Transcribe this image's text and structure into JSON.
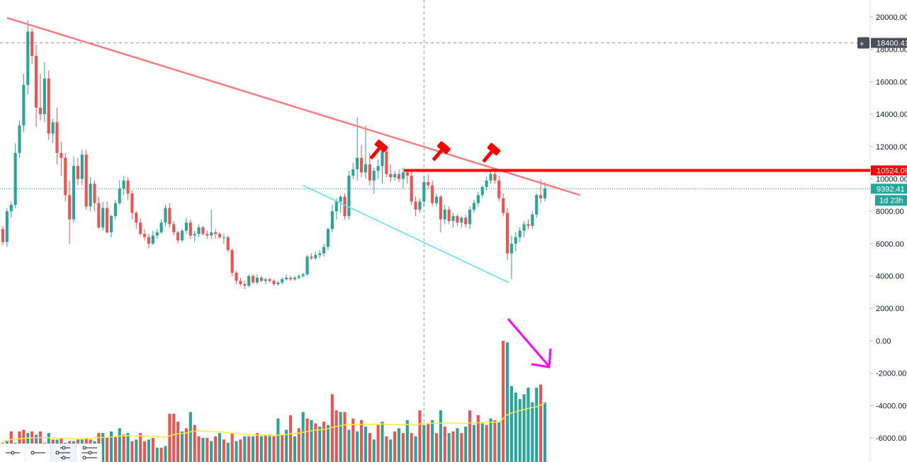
{
  "chart_data": {
    "type": "candlestick",
    "title": "",
    "ylim": [
      -7000,
      20500
    ],
    "y_ticks": [
      20000,
      18000,
      16000,
      14000,
      12000,
      10000,
      8000,
      6000,
      4000,
      2000,
      0,
      -2000,
      -4000,
      -6000
    ],
    "y_tick_labels": [
      "20000.00",
      "18000.00",
      "16000.00",
      "14000.00",
      "12000.00",
      "10000.00",
      "8000.00",
      "6000.00",
      "4000.00",
      "2000.00",
      "0.00",
      "-2000.00",
      "-4000.00",
      "-6000.00"
    ],
    "grid": false,
    "crosshair": {
      "price": 18400.41,
      "label": "18400.41"
    },
    "horizontal_level": {
      "price": 10524.09,
      "label": "10524.09",
      "color": "#ff0000"
    },
    "last_price": {
      "price": 9392.41,
      "label": "9392.41",
      "countdown": "1d 23h",
      "color": "#26a69a"
    },
    "up_color": "#26a69a",
    "down_color": "#ef5350",
    "volume_ma_color": "#ffeb3b",
    "candles_ohlc": [
      [
        6900,
        7100,
        5900,
        6100
      ],
      [
        6100,
        8200,
        5800,
        8000
      ],
      [
        8000,
        8600,
        7600,
        8400
      ],
      [
        8400,
        12200,
        8200,
        11600
      ],
      [
        11600,
        13600,
        11300,
        13300
      ],
      [
        13300,
        16500,
        12900,
        15800
      ],
      [
        15800,
        19800,
        15200,
        19100
      ],
      [
        19100,
        19300,
        17100,
        17600
      ],
      [
        17600,
        18300,
        13200,
        14400
      ],
      [
        14400,
        16500,
        13600,
        14000
      ],
      [
        14000,
        17200,
        13500,
        16200
      ],
      [
        16200,
        16700,
        12400,
        12800
      ],
      [
        12800,
        13700,
        12200,
        13500
      ],
      [
        13500,
        14400,
        10900,
        11600
      ],
      [
        11600,
        12300,
        10200,
        11300
      ],
      [
        11300,
        11600,
        8600,
        9000
      ],
      [
        9000,
        9900,
        6000,
        7500
      ],
      [
        7500,
        11400,
        7300,
        10800
      ],
      [
        10800,
        11300,
        9600,
        10000
      ],
      [
        10000,
        11800,
        9600,
        11500
      ],
      [
        11500,
        11800,
        8100,
        8300
      ],
      [
        8300,
        10100,
        8000,
        9700
      ],
      [
        9700,
        9900,
        8000,
        8500
      ],
      [
        8500,
        8900,
        6900,
        7000
      ],
      [
        7000,
        8600,
        6800,
        8200
      ],
      [
        8200,
        8600,
        6600,
        6700
      ],
      [
        6700,
        7800,
        6400,
        7700
      ],
      [
        7700,
        8700,
        7500,
        8500
      ],
      [
        8500,
        9900,
        8400,
        9400
      ],
      [
        9400,
        10200,
        9000,
        9900
      ],
      [
        9900,
        10100,
        8700,
        9100
      ],
      [
        9100,
        9300,
        7500,
        7900
      ],
      [
        7900,
        8000,
        6900,
        7300
      ],
      [
        7300,
        7600,
        6500,
        6600
      ],
      [
        6600,
        6900,
        6200,
        6400
      ],
      [
        6400,
        6600,
        5700,
        6000
      ],
      [
        6000,
        6800,
        5900,
        6500
      ],
      [
        6500,
        6900,
        6300,
        6700
      ],
      [
        6700,
        7500,
        6600,
        7300
      ],
      [
        7300,
        8400,
        7100,
        8200
      ],
      [
        8200,
        8500,
        7000,
        7200
      ],
      [
        7200,
        7400,
        6500,
        6700
      ],
      [
        6700,
        6800,
        6000,
        6200
      ],
      [
        6200,
        6900,
        6100,
        6800
      ],
      [
        6800,
        7600,
        6600,
        7300
      ],
      [
        7300,
        7500,
        6300,
        6500
      ],
      [
        6500,
        6800,
        6100,
        6600
      ],
      [
        6600,
        7200,
        6400,
        7000
      ],
      [
        7000,
        7100,
        6500,
        6600
      ],
      [
        6600,
        6800,
        6300,
        6500
      ],
      [
        6500,
        8100,
        6300,
        6700
      ],
      [
        6700,
        6900,
        6300,
        6600
      ],
      [
        6600,
        6700,
        6300,
        6400
      ],
      [
        6400,
        6600,
        6000,
        6400
      ],
      [
        6400,
        6500,
        5500,
        5600
      ],
      [
        5600,
        5700,
        4000,
        4200
      ],
      [
        4200,
        4300,
        3500,
        3700
      ],
      [
        3700,
        3900,
        3400,
        3500
      ],
      [
        3500,
        3700,
        3200,
        3400
      ],
      [
        3400,
        4100,
        3300,
        4000
      ],
      [
        4000,
        4100,
        3500,
        3600
      ],
      [
        3600,
        4100,
        3500,
        3900
      ],
      [
        3900,
        4000,
        3600,
        3700
      ],
      [
        3700,
        3900,
        3500,
        3800
      ],
      [
        3800,
        3900,
        3600,
        3700
      ],
      [
        3700,
        3800,
        3400,
        3500
      ],
      [
        3500,
        3700,
        3400,
        3600
      ],
      [
        3600,
        3900,
        3500,
        3800
      ],
      [
        3800,
        4100,
        3700,
        3900
      ],
      [
        3900,
        4000,
        3700,
        3800
      ],
      [
        3800,
        4000,
        3700,
        3900
      ],
      [
        3900,
        4100,
        3800,
        4000
      ],
      [
        4000,
        4200,
        3900,
        4100
      ],
      [
        4100,
        5300,
        4000,
        5200
      ],
      [
        5200,
        5400,
        5000,
        5100
      ],
      [
        5100,
        5500,
        5000,
        5300
      ],
      [
        5300,
        5600,
        5100,
        5400
      ],
      [
        5400,
        6000,
        5200,
        5800
      ],
      [
        5800,
        7000,
        5600,
        6900
      ],
      [
        6900,
        8400,
        6700,
        8000
      ],
      [
        8000,
        8800,
        7500,
        8600
      ],
      [
        8600,
        9000,
        7900,
        8900
      ],
      [
        8900,
        9100,
        7500,
        7700
      ],
      [
        7700,
        10500,
        7500,
        10200
      ],
      [
        10200,
        11000,
        10000,
        10600
      ],
      [
        10600,
        13800,
        9900,
        11300
      ],
      [
        11300,
        12100,
        10100,
        10400
      ],
      [
        10400,
        13300,
        10000,
        10900
      ],
      [
        10900,
        11600,
        9600,
        9900
      ],
      [
        9900,
        10700,
        9100,
        10500
      ],
      [
        10500,
        11200,
        10000,
        10800
      ],
      [
        10800,
        12100,
        9700,
        11700
      ],
      [
        11700,
        11900,
        10100,
        10300
      ],
      [
        10300,
        10900,
        9800,
        10100
      ],
      [
        10100,
        10500,
        9900,
        10300
      ],
      [
        10300,
        10600,
        9800,
        10000
      ],
      [
        10000,
        10700,
        9400,
        10400
      ],
      [
        10400,
        10600,
        9700,
        10200
      ],
      [
        10200,
        10500,
        8400,
        8600
      ],
      [
        8600,
        8900,
        7700,
        8100
      ],
      [
        8100,
        8800,
        7900,
        8600
      ],
      [
        8600,
        10200,
        8300,
        9800
      ],
      [
        9800,
        10300,
        9400,
        9600
      ],
      [
        9600,
        9900,
        8300,
        8500
      ],
      [
        8500,
        9100,
        8300,
        8900
      ],
      [
        8900,
        9000,
        6700,
        7500
      ],
      [
        7500,
        8400,
        7200,
        8100
      ],
      [
        8100,
        8300,
        7200,
        7400
      ],
      [
        7400,
        7900,
        7000,
        7700
      ],
      [
        7700,
        7800,
        7100,
        7300
      ],
      [
        7300,
        7700,
        7000,
        7600
      ],
      [
        7600,
        7800,
        7000,
        7200
      ],
      [
        7200,
        8300,
        6900,
        8100
      ],
      [
        8100,
        8700,
        7900,
        8500
      ],
      [
        8500,
        9200,
        8300,
        9000
      ],
      [
        9000,
        9600,
        8800,
        9500
      ],
      [
        9500,
        10100,
        9300,
        9900
      ],
      [
        9900,
        10500,
        9700,
        10300
      ],
      [
        10300,
        10500,
        9700,
        9900
      ],
      [
        9900,
        10200,
        8600,
        8800
      ],
      [
        8800,
        9100,
        7700,
        7900
      ],
      [
        7900,
        8200,
        5000,
        5400
      ],
      [
        5400,
        6500,
        3800,
        6000
      ],
      [
        6000,
        6700,
        5500,
        6400
      ],
      [
        6400,
        7000,
        6100,
        6800
      ],
      [
        6800,
        7400,
        6400,
        7200
      ],
      [
        7200,
        7500,
        6900,
        7100
      ],
      [
        7100,
        8000,
        6900,
        7800
      ],
      [
        7800,
        9100,
        7600,
        9000
      ],
      [
        9000,
        10000,
        8500,
        8800
      ],
      [
        8800,
        9800,
        8600,
        9400
      ]
    ],
    "volume": [
      {
        "v": -6300,
        "d": 1
      },
      {
        "v": -6200,
        "d": 0
      },
      {
        "v": -5600,
        "d": 1
      },
      {
        "v": -6300,
        "d": 0
      },
      {
        "v": -5600,
        "d": 1
      },
      {
        "v": -5500,
        "d": 1
      },
      {
        "v": -5700,
        "d": 0
      },
      {
        "v": -5600,
        "d": 1
      },
      {
        "v": -5800,
        "d": 0
      },
      {
        "v": -5600,
        "d": 1
      },
      {
        "v": -6300,
        "d": 1
      },
      {
        "v": -5700,
        "d": 0
      },
      {
        "v": -6100,
        "d": 1
      },
      {
        "v": -6100,
        "d": 0
      },
      {
        "v": -6000,
        "d": 1
      },
      {
        "v": -6300,
        "d": 0
      },
      {
        "v": -6200,
        "d": 1
      },
      {
        "v": -6200,
        "d": 0
      },
      {
        "v": -6100,
        "d": 1
      },
      {
        "v": -6100,
        "d": 0
      },
      {
        "v": -6000,
        "d": 1
      },
      {
        "v": -6100,
        "d": 1
      },
      {
        "v": -6200,
        "d": 0
      },
      {
        "v": -5700,
        "d": 1
      },
      {
        "v": -5700,
        "d": 0
      },
      {
        "v": -6000,
        "d": 1
      },
      {
        "v": -5600,
        "d": 0
      },
      {
        "v": -5900,
        "d": 1
      },
      {
        "v": -5400,
        "d": 0
      },
      {
        "v": -5800,
        "d": 1
      },
      {
        "v": -5700,
        "d": 0
      },
      {
        "v": -6200,
        "d": 1
      },
      {
        "v": -6100,
        "d": 0
      },
      {
        "v": -5700,
        "d": 1
      },
      {
        "v": -6200,
        "d": 1
      },
      {
        "v": -6100,
        "d": 0
      },
      {
        "v": -6000,
        "d": 1
      },
      {
        "v": -6600,
        "d": 0
      },
      {
        "v": -6600,
        "d": 1
      },
      {
        "v": -6500,
        "d": 0
      },
      {
        "v": -4500,
        "d": 1
      },
      {
        "v": -4500,
        "d": 1
      },
      {
        "v": -5000,
        "d": 1
      },
      {
        "v": -5600,
        "d": 0
      },
      {
        "v": -5400,
        "d": 1
      },
      {
        "v": -4400,
        "d": 0
      },
      {
        "v": -5200,
        "d": 1
      },
      {
        "v": -5900,
        "d": 1
      },
      {
        "v": -6000,
        "d": 0
      },
      {
        "v": -6000,
        "d": 1
      },
      {
        "v": -6200,
        "d": 0
      },
      {
        "v": -5900,
        "d": 1
      },
      {
        "v": -5700,
        "d": 0
      },
      {
        "v": -6100,
        "d": 1
      },
      {
        "v": -6300,
        "d": 0
      },
      {
        "v": -5700,
        "d": 1
      },
      {
        "v": -6200,
        "d": 0
      },
      {
        "v": -6100,
        "d": 1
      },
      {
        "v": -5900,
        "d": 0
      },
      {
        "v": -5900,
        "d": 1
      },
      {
        "v": -5900,
        "d": 0
      },
      {
        "v": -5700,
        "d": 1
      },
      {
        "v": -5900,
        "d": 0
      },
      {
        "v": -5800,
        "d": 1
      },
      {
        "v": -5800,
        "d": 0
      },
      {
        "v": -5900,
        "d": 1
      },
      {
        "v": -4800,
        "d": 0
      },
      {
        "v": -5800,
        "d": 1
      },
      {
        "v": -5500,
        "d": 0
      },
      {
        "v": -4600,
        "d": 1
      },
      {
        "v": -5900,
        "d": 0
      },
      {
        "v": -5400,
        "d": 1
      },
      {
        "v": -4400,
        "d": 0
      },
      {
        "v": -4800,
        "d": 1
      },
      {
        "v": -4900,
        "d": 0
      },
      {
        "v": -5100,
        "d": 1
      },
      {
        "v": -5300,
        "d": 0
      },
      {
        "v": -5000,
        "d": 1
      },
      {
        "v": -5200,
        "d": 0
      },
      {
        "v": -3300,
        "d": 1
      },
      {
        "v": -4300,
        "d": 1
      },
      {
        "v": -4400,
        "d": 0
      },
      {
        "v": -4400,
        "d": 1
      },
      {
        "v": -5500,
        "d": 0
      },
      {
        "v": -4800,
        "d": 1
      },
      {
        "v": -5600,
        "d": 0
      },
      {
        "v": -4900,
        "d": 1
      },
      {
        "v": -5300,
        "d": 0
      },
      {
        "v": -5700,
        "d": 1
      },
      {
        "v": -6100,
        "d": 0
      },
      {
        "v": -5200,
        "d": 1
      },
      {
        "v": -5000,
        "d": 0
      },
      {
        "v": -5900,
        "d": 1
      },
      {
        "v": -6100,
        "d": 0
      },
      {
        "v": -5600,
        "d": 1
      },
      {
        "v": -5400,
        "d": 0
      },
      {
        "v": -5700,
        "d": 1
      },
      {
        "v": -4900,
        "d": 0
      },
      {
        "v": -5700,
        "d": 1
      },
      {
        "v": -5900,
        "d": 0
      },
      {
        "v": -4300,
        "d": 1
      },
      {
        "v": -5200,
        "d": 0
      },
      {
        "v": -5100,
        "d": 1
      },
      {
        "v": -4900,
        "d": 0
      },
      {
        "v": -5700,
        "d": 1
      },
      {
        "v": -4300,
        "d": 0
      },
      {
        "v": -5300,
        "d": 1
      },
      {
        "v": -5700,
        "d": 0
      },
      {
        "v": -5600,
        "d": 1
      },
      {
        "v": -5400,
        "d": 0
      },
      {
        "v": -5700,
        "d": 1
      },
      {
        "v": -5300,
        "d": 0
      },
      {
        "v": -4300,
        "d": 1
      },
      {
        "v": -5200,
        "d": 0
      },
      {
        "v": -4600,
        "d": 1
      },
      {
        "v": -5100,
        "d": 0
      },
      {
        "v": -5200,
        "d": 1
      },
      {
        "v": -4800,
        "d": 0
      },
      {
        "v": -4900,
        "d": 1
      },
      {
        "v": -5000,
        "d": 0
      },
      {
        "v": 0,
        "d": 1
      },
      {
        "v": -100,
        "d": 0
      },
      {
        "v": -2800,
        "d": 0
      },
      {
        "v": -3200,
        "d": 0
      },
      {
        "v": -3600,
        "d": 0
      },
      {
        "v": -3300,
        "d": 0
      },
      {
        "v": -2900,
        "d": 0
      },
      {
        "v": -3800,
        "d": 0
      },
      {
        "v": -2900,
        "d": 0
      },
      {
        "v": -2700,
        "d": 1
      },
      {
        "v": -3800,
        "d": 0
      }
    ],
    "volume_ma": [
      -6200,
      -6150,
      -6100,
      -6080,
      -6050,
      -6030,
      -6000,
      -6000,
      -5990,
      -5980,
      -5990,
      -5990,
      -6000,
      -6010,
      -6020,
      -6030,
      -6050,
      -6060,
      -6060,
      -6050,
      -6040,
      -6030,
      -6020,
      -5990,
      -5970,
      -5960,
      -5940,
      -5920,
      -5890,
      -5870,
      -5860,
      -5870,
      -5880,
      -5870,
      -5880,
      -5890,
      -5890,
      -5910,
      -5940,
      -5960,
      -5880,
      -5800,
      -5750,
      -5730,
      -5700,
      -5620,
      -5580,
      -5560,
      -5570,
      -5580,
      -5600,
      -5610,
      -5620,
      -5650,
      -5680,
      -5710,
      -5720,
      -5750,
      -5770,
      -5790,
      -5800,
      -5820,
      -5830,
      -5840,
      -5860,
      -5870,
      -5830,
      -5810,
      -5790,
      -5740,
      -5740,
      -5710,
      -5650,
      -5600,
      -5560,
      -5520,
      -5500,
      -5470,
      -5440,
      -5350,
      -5290,
      -5240,
      -5190,
      -5200,
      -5170,
      -5180,
      -5160,
      -5150,
      -5160,
      -5170,
      -5160,
      -5140,
      -5160,
      -5180,
      -5180,
      -5180,
      -5190,
      -5170,
      -5190,
      -5200,
      -5140,
      -5130,
      -5110,
      -5090,
      -5120,
      -5080,
      -5060,
      -5080,
      -5090,
      -5090,
      -5110,
      -5110,
      -5070,
      -5080,
      -5060,
      -5050,
      -5050,
      -5040,
      -5020,
      -5020,
      -4800,
      -4570,
      -4460,
      -4390,
      -4300,
      -4250,
      -4180,
      -4120,
      -4080,
      -3960,
      -3860
    ],
    "upper_trendline": {
      "x1": 0,
      "y1": 19950,
      "x2": 135,
      "y2": 9000,
      "color": "#f77c80"
    },
    "lower_trendline": {
      "x1": 72,
      "y1": 9600,
      "x2": 122,
      "y2": 3600,
      "color": "#5ce1e6"
    },
    "markers": [
      {
        "x": 90,
        "price": 11800,
        "label": "gavel-icon"
      },
      {
        "x": 105,
        "price": 11700,
        "label": "gavel-icon"
      },
      {
        "x": 117,
        "price": 11600,
        "label": "gavel-icon"
      }
    ],
    "volume_arrow": {
      "color": "#ff00ff"
    }
  },
  "toolbar": {
    "tools": [
      "line-tool-icon",
      "ray-tool-icon",
      "pitchfork-icon",
      "pitchfork-modified-icon"
    ]
  }
}
